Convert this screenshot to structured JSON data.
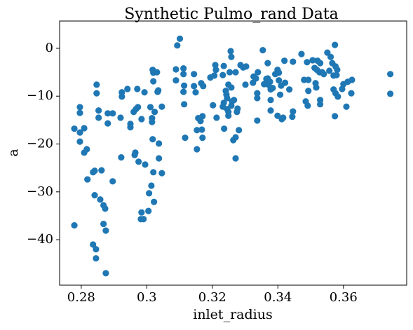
{
  "chart_data": {
    "type": "scatter",
    "title": "Synthetic Pulmo_rand Data",
    "x_label": "inlet_radius",
    "y_label": "a",
    "color": "#1f77b4",
    "xlim": [
      0.2734,
      0.3793
    ],
    "ylim": [
      -49.5,
      5.7
    ],
    "xticks": [
      0.28,
      0.3,
      0.32,
      0.34,
      0.36
    ],
    "yticks": [
      {
        "value": -40,
        "label": "−40"
      },
      {
        "value": -30,
        "label": "−30"
      },
      {
        "value": -20,
        "label": "−20"
      },
      {
        "value": -10,
        "label": "−10"
      },
      0
    ],
    "x": [
      0.2779,
      0.2779,
      0.2796,
      0.2796,
      0.2796,
      0.2796,
      0.2809,
      0.2809,
      0.2817,
      0.2819,
      0.2836,
      0.2841,
      0.2836,
      0.2845,
      0.2845,
      0.2841,
      0.2847,
      0.2847,
      0.2853,
      0.2853,
      0.2862,
      0.2858,
      0.2868,
      0.2873,
      0.2868,
      0.2875,
      0.2875,
      0.2881,
      0.2881,
      0.2896,
      0.2896,
      0.292,
      0.2922,
      0.2924,
      0.2924,
      0.2941,
      0.295,
      0.295,
      0.296,
      0.2967,
      0.2971,
      0.2965,
      0.2963,
      0.2973,
      0.2975,
      0.2984,
      0.2984,
      0.2982,
      0.299,
      0.2993,
      0.2995,
      0.3005,
      0.3007,
      0.3011,
      0.3014,
      0.3016,
      0.3016,
      0.3018,
      0.3018,
      0.302,
      0.302,
      0.302,
      0.3022,
      0.3024,
      0.3031,
      0.3033,
      0.3035,
      0.3037,
      0.3037,
      0.3046,
      0.3046,
      0.3093,
      0.3101,
      0.3089,
      0.3089,
      0.3112,
      0.3112,
      0.3114,
      0.3112,
      0.3114,
      0.3117,
      0.3144,
      0.3144,
      0.3149,
      0.3153,
      0.3153,
      0.3157,
      0.3164,
      0.317,
      0.317,
      0.3166,
      0.3172,
      0.3168,
      0.3194,
      0.3202,
      0.3206,
      0.3209,
      0.3211,
      0.3213,
      0.3232,
      0.3235,
      0.3235,
      0.3232,
      0.3236,
      0.3241,
      0.3243,
      0.3245,
      0.3245,
      0.3249,
      0.3249,
      0.3249,
      0.3253,
      0.3256,
      0.3258,
      0.3258,
      0.3258,
      0.326,
      0.3264,
      0.3266,
      0.3271,
      0.3271,
      0.3271,
      0.3275,
      0.3277,
      0.3281,
      0.3286,
      0.3294,
      0.3303,
      0.3301,
      0.3324,
      0.3326,
      0.3333,
      0.3337,
      0.3337,
      0.3337,
      0.3339,
      0.3354,
      0.3358,
      0.3365,
      0.3369,
      0.3369,
      0.3371,
      0.3376,
      0.3378,
      0.3378,
      0.3378,
      0.3384,
      0.3392,
      0.3399,
      0.3403,
      0.3399,
      0.3403,
      0.3407,
      0.341,
      0.3412,
      0.3416,
      0.342,
      0.3422,
      0.3435,
      0.3444,
      0.3446,
      0.3446,
      0.3472,
      0.348,
      0.3485,
      0.3489,
      0.3491,
      0.3493,
      0.3493,
      0.3506,
      0.3512,
      0.3515,
      0.3517,
      0.3519,
      0.3521,
      0.3527,
      0.3529,
      0.3529,
      0.3529,
      0.3535,
      0.354,
      0.3551,
      0.3557,
      0.3561,
      0.3566,
      0.357,
      0.357,
      0.3574,
      0.3574,
      0.3576,
      0.3576,
      0.3579,
      0.3581,
      0.3583,
      0.3596,
      0.36,
      0.3609,
      0.3613,
      0.3624,
      0.3626,
      0.3743,
      0.3743
    ],
    "values": [
      -16.8,
      -37.0,
      -12.3,
      -13.5,
      -17.6,
      -19.5,
      -16.7,
      -21.8,
      -21.1,
      -27.4,
      -25.9,
      -25.6,
      -41.0,
      -42.0,
      -43.9,
      -30.7,
      -7.6,
      -9.4,
      -13.0,
      -14.5,
      -25.5,
      -31.6,
      -32.8,
      -33.5,
      -36.7,
      -38.1,
      -47.0,
      -13.6,
      -15.7,
      -27.8,
      -13.6,
      -14.5,
      -22.8,
      -9.2,
      -10.1,
      -8.5,
      -15.8,
      -16.5,
      -13.3,
      -12.7,
      -8.5,
      -21.8,
      -22.3,
      -12.3,
      -23.7,
      -14.8,
      -34.3,
      -35.7,
      -35.7,
      -9.2,
      -24.3,
      -34.0,
      -30.3,
      -12.3,
      -28.7,
      -14.6,
      -15.4,
      -19.0,
      -4.5,
      -5.1,
      -6.9,
      -25.9,
      -32.1,
      -13.3,
      -5.0,
      -9.1,
      -8.8,
      -19.9,
      -23.0,
      -12.2,
      -26.1,
      0.6,
      2.0,
      -4.4,
      -6.7,
      -4.2,
      -5.4,
      -7.8,
      -9.1,
      -11.7,
      -18.7,
      -5.4,
      -7.9,
      -9.2,
      -21.1,
      -17.1,
      -14.6,
      -15.2,
      -14.2,
      -18.7,
      -7.3,
      -7.9,
      -17.0,
      -6.1,
      -11.9,
      -5.7,
      -3.5,
      -4.5,
      -14.5,
      -5.6,
      -3.7,
      -11.4,
      -12.2,
      -16.8,
      -8.9,
      -9.7,
      -10.4,
      -12.7,
      -7.6,
      -14.1,
      -13.3,
      -5.0,
      -0.6,
      -1.8,
      -8.2,
      -12.0,
      -11.1,
      -19.2,
      -10.8,
      -5.0,
      -23.0,
      -18.6,
      -13.3,
      -12.6,
      -17.1,
      -3.5,
      -4.0,
      -3.8,
      -7.6,
      -7.2,
      -5.9,
      -6.3,
      -9.4,
      -10.4,
      -15.1,
      -5.0,
      -0.4,
      -7.5,
      -6.4,
      -3.1,
      -6.3,
      -7.6,
      -7.0,
      -8.6,
      -10.8,
      -13.0,
      -8.3,
      -5.4,
      -4.5,
      -6.7,
      -14.1,
      -5.1,
      -9.7,
      -7.8,
      -14.8,
      -14.5,
      -2.6,
      -7.2,
      -8.6,
      -14.3,
      -13.2,
      -2.8,
      -1.2,
      -6.6,
      -11.1,
      -2.9,
      -12.0,
      -8.9,
      -6.6,
      -2.5,
      -4.1,
      -7.3,
      -8.2,
      -4.5,
      -2.6,
      -5.0,
      -3.1,
      -10.8,
      -11.7,
      -5.0,
      -5.4,
      -0.9,
      -4.7,
      -1.8,
      -3.1,
      -5.7,
      -8.6,
      0.7,
      -14.2,
      -3.8,
      -9.4,
      -5.6,
      -4.5,
      -10.1,
      -8.5,
      -7.5,
      -12.2,
      -7.0,
      -9.4,
      -6.6,
      -5.4,
      -9.5
    ]
  }
}
